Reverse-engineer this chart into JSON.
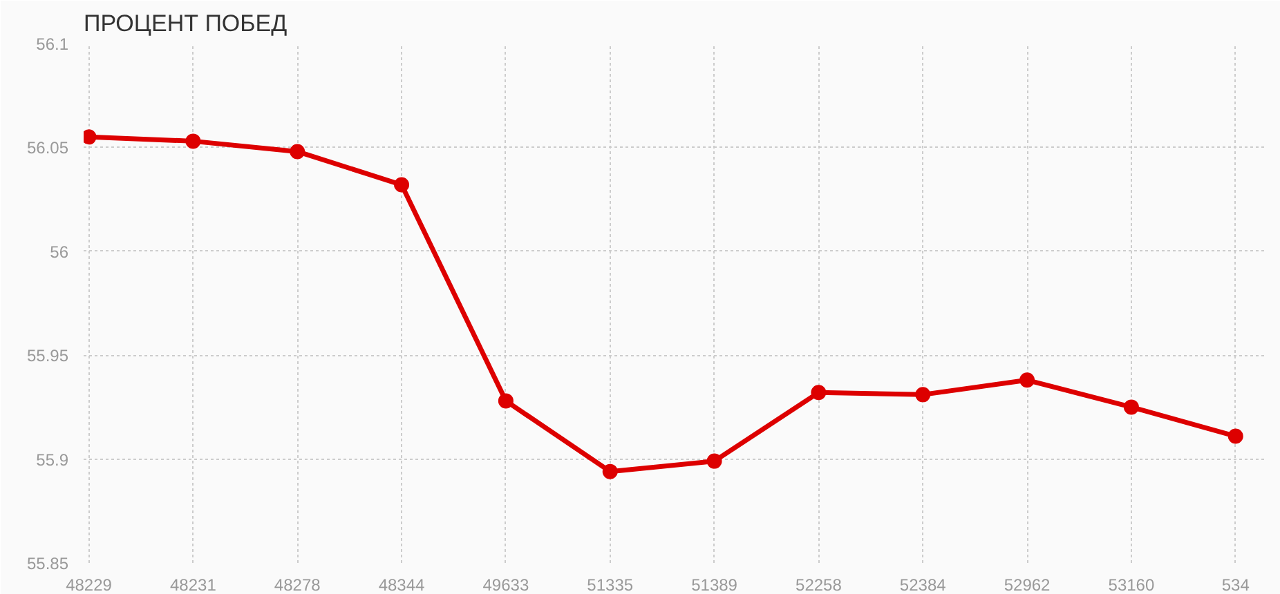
{
  "chart_data": {
    "type": "line",
    "title": "ПРОЦЕНТ ПОБЕД",
    "categories": [
      "48229",
      "48231",
      "48278",
      "48344",
      "49633",
      "51335",
      "51389",
      "52258",
      "52384",
      "52962",
      "53160",
      "534"
    ],
    "series": [
      {
        "color": "#dd0000",
        "values": [
          56.055,
          56.053,
          56.048,
          56.032,
          55.928,
          55.894,
          55.899,
          55.932,
          55.931,
          55.938,
          55.925,
          55.911
        ]
      }
    ],
    "ylim": [
      55.85,
      56.1
    ],
    "yticks": [
      55.85,
      55.9,
      55.95,
      56,
      56.05,
      56.1
    ],
    "grid": true,
    "marker": "circle",
    "line_style": "solid"
  }
}
